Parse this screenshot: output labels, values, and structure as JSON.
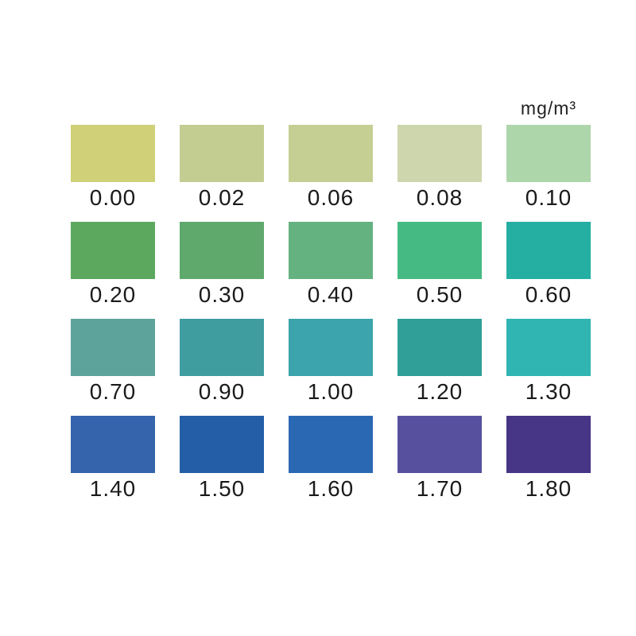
{
  "page": {
    "background_color": "#ffffff",
    "text_color": "#1a1a1a"
  },
  "unit_label": "mg/m³",
  "chart_data": {
    "type": "heatmap",
    "title": "",
    "unit_label": "mg/m³",
    "layout": {
      "columns": 5,
      "rows": 4,
      "unit_label_position": "top-right",
      "grid": false
    },
    "categories": [
      0.0,
      0.02,
      0.06,
      0.08,
      0.1,
      0.2,
      0.3,
      0.4,
      0.5,
      0.6,
      0.7,
      0.9,
      1.0,
      1.2,
      1.3,
      1.4,
      1.5,
      1.6,
      1.7,
      1.8
    ],
    "rows": [
      {
        "cells": [
          {
            "value": "0.00",
            "color": "#cfd077"
          },
          {
            "value": "0.02",
            "color": "#c3cd92"
          },
          {
            "value": "0.06",
            "color": "#c6cf93"
          },
          {
            "value": "0.08",
            "color": "#cdd6ad"
          },
          {
            "value": "0.10",
            "color": "#aed6ab"
          }
        ]
      },
      {
        "cells": [
          {
            "value": "0.20",
            "color": "#5ca85e"
          },
          {
            "value": "0.30",
            "color": "#5ea96b"
          },
          {
            "value": "0.40",
            "color": "#64b280"
          },
          {
            "value": "0.50",
            "color": "#45bb83"
          },
          {
            "value": "0.60",
            "color": "#25afa3"
          }
        ]
      },
      {
        "cells": [
          {
            "value": "0.70",
            "color": "#5da39c"
          },
          {
            "value": "0.90",
            "color": "#3f9da0"
          },
          {
            "value": "1.00",
            "color": "#3ba4ac"
          },
          {
            "value": "1.20",
            "color": "#2f9f97"
          },
          {
            "value": "1.30",
            "color": "#31b5b2"
          }
        ]
      },
      {
        "cells": [
          {
            "value": "1.40",
            "color": "#3563ac"
          },
          {
            "value": "1.50",
            "color": "#235ea7"
          },
          {
            "value": "1.60",
            "color": "#2a68b4"
          },
          {
            "value": "1.70",
            "color": "#57509f"
          },
          {
            "value": "1.80",
            "color": "#473585"
          }
        ]
      }
    ]
  }
}
